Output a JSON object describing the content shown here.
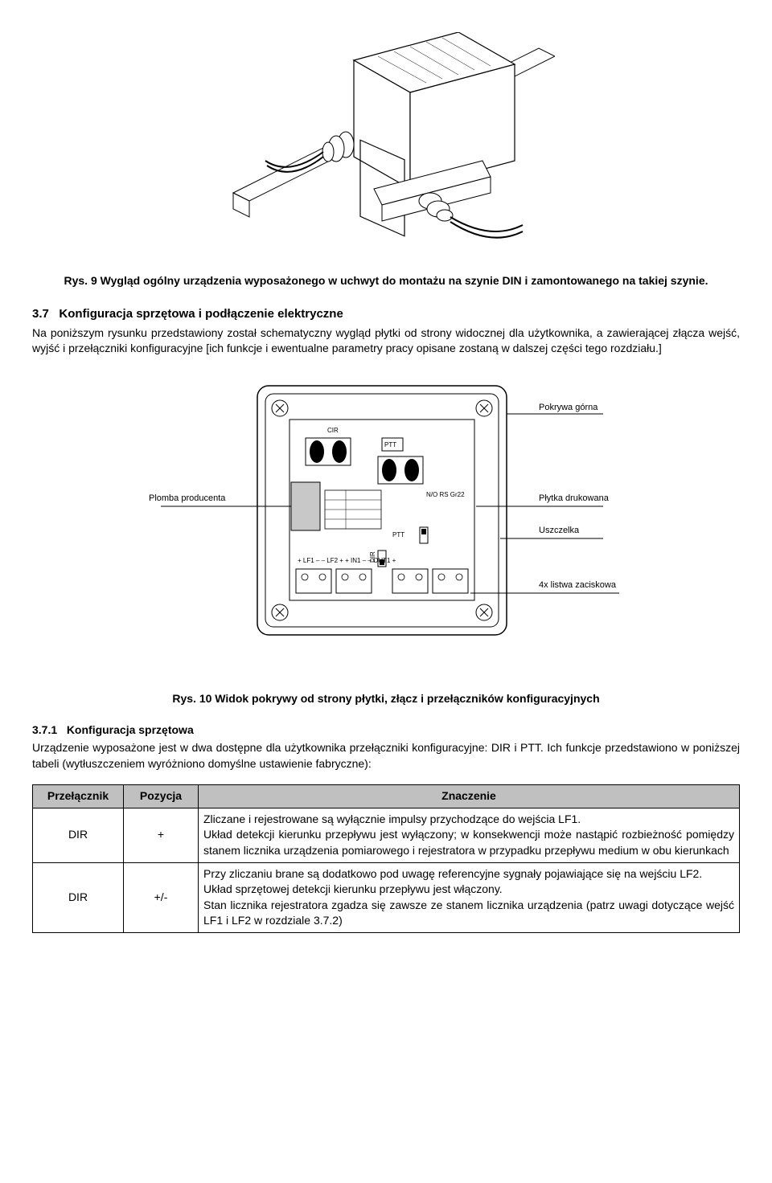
{
  "fig9": {
    "caption_prefix": "Rys. 9 ",
    "caption": "Wygląd ogólny urządzenia wyposażonego w uchwyt do montażu na szynie DIN i zamontowanego na takiej szynie."
  },
  "section37": {
    "number": "3.7",
    "title": "Konfiguracja sprzętowa i podłączenie elektryczne",
    "body": "Na poniższym rysunku przedstawiony został schematyczny wygląd płytki od strony widocznej dla użytkownika, a zawierającej złącza wejść, wyjść i przełączniki konfiguracyjne [ich funkcje i ewentualne parametry pracy opisane zostaną w dalszej części tego rozdziału.]"
  },
  "fig10": {
    "labels": {
      "top_right": "Pokrywa górna",
      "left": "Plomba producenta",
      "mid_right_1": "Płytka drukowana",
      "mid_right_2": "Uszczelka",
      "bottom_right": "4x listwa zaciskowa"
    },
    "pcb_labels": {
      "cir": "CIR",
      "ptt_top": "PTT",
      "right_row": "N/O  RS Gr22",
      "ptt": "PTT",
      "dir": "DIR",
      "terminals": "+ LF1 –    – LF2 +           + IN1 –    – OUT1 +"
    },
    "caption_prefix": "Rys. 10 ",
    "caption": "Widok pokrywy od strony płytki, złącz i przełączników konfiguracyjnych"
  },
  "section371": {
    "number": "3.7.1",
    "title": "Konfiguracja sprzętowa",
    "body": "Urządzenie wyposażone jest w dwa dostępne dla użytkownika przełączniki konfiguracyjne: DIR i PTT. Ich funkcje przedstawiono w poniższej tabeli (wytłuszczeniem wyróżniono domyślne ustawienie fabryczne):"
  },
  "table": {
    "headers": [
      "Przełącznik",
      "Pozycja",
      "Znaczenie"
    ],
    "rows": [
      {
        "switch": "DIR",
        "pos": "+",
        "meaning": "Zliczane i rejestrowane są wyłącznie impulsy przychodzące do wejścia LF1.\nUkład detekcji kierunku przepływu jest wyłączony; w konsekwencji może nastąpić rozbieżność pomiędzy stanem licznika urządzenia pomiarowego i rejestratora w przypadku przepływu medium w obu kierunkach"
      },
      {
        "switch": "DIR",
        "pos": "+/-",
        "meaning": "Przy zliczaniu brane są dodatkowo pod uwagę referencyjne sygnały pojawiające się na wejściu LF2.\nUkład sprzętowej detekcji kierunku przepływu jest włączony.\nStan licznika rejestratora zgadza się zawsze ze stanem licznika urządzenia (patrz uwagi dotyczące wejść LF1 i LF2 w rozdziale 3.7.2)"
      }
    ]
  }
}
